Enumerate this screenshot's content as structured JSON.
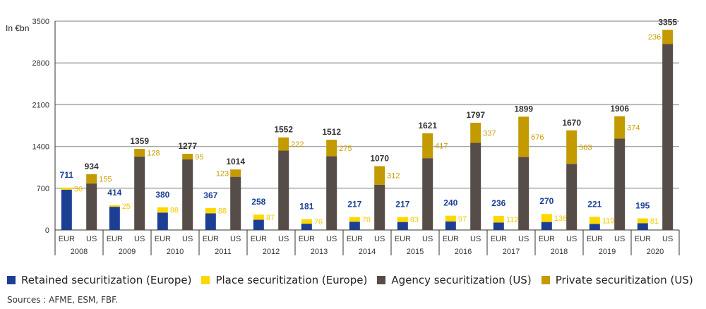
{
  "chart_data": {
    "type": "bar",
    "stacked": true,
    "ylabel": "In €bn",
    "ylim": [
      0,
      3500
    ],
    "yticks": [
      0,
      700,
      1400,
      2100,
      2800,
      3500
    ],
    "grid": true,
    "legend_position": "bottom",
    "categories": [
      "2008",
      "2009",
      "2010",
      "2011",
      "2012",
      "2013",
      "2014",
      "2015",
      "2016",
      "2017",
      "2018",
      "2019",
      "2020"
    ],
    "subcategories": [
      "EUR",
      "US"
    ],
    "eur_total": [
      711,
      414,
      380,
      367,
      258,
      181,
      217,
      217,
      240,
      236,
      270,
      221,
      195
    ],
    "us_total": [
      934,
      1359,
      1277,
      1014,
      1552,
      1512,
      1070,
      1621,
      1797,
      1899,
      1670,
      1906,
      3355
    ],
    "series": [
      {
        "name": "Retained securitization (Europe)",
        "group": "EUR",
        "color": "#1c3f94",
        "values": [
          675,
          389,
          292,
          279,
          171,
          105,
          139,
          134,
          143,
          124,
          134,
          102,
          114
        ]
      },
      {
        "name": "Place securitization (Europe)",
        "group": "EUR",
        "color": "#ffd700",
        "values": [
          36,
          25,
          88,
          88,
          87,
          76,
          78,
          83,
          97,
          112,
          136,
          119,
          81
        ]
      },
      {
        "name": "Agency securitization (US)",
        "group": "US",
        "color": "#564c48",
        "values": [
          779,
          1231,
          1182,
          891,
          1330,
          1237,
          758,
          1204,
          1460,
          1223,
          1107,
          1532,
          3119
        ]
      },
      {
        "name": "Private securitization (US)",
        "group": "US",
        "color": "#c39a00",
        "values": [
          155,
          128,
          95,
          123,
          222,
          275,
          312,
          417,
          337,
          676,
          563,
          374,
          236
        ]
      }
    ]
  },
  "sources": "Sources : AFME, ESM, FBF."
}
